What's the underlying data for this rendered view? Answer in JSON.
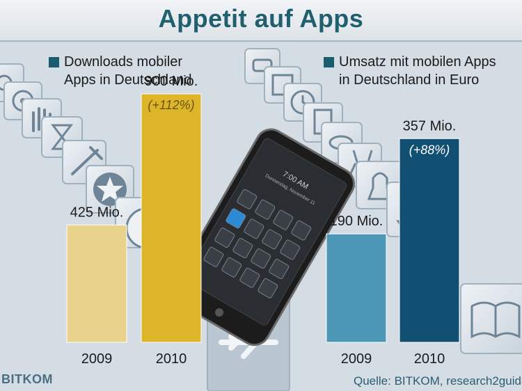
{
  "title": "Appetit auf Apps",
  "left_legend": {
    "line1": "Downloads mobiler",
    "line2": "Apps in Deutschland"
  },
  "right_legend": {
    "line1": "Umsatz mit mobilen Apps",
    "line2": "in Deutschland in Euro"
  },
  "source": "Quelle: BITKOM, research2guidance",
  "logo": "BITKOM",
  "phone": {
    "time": "7:00 AM",
    "date": "Donnerstag, November 11"
  },
  "icons": [
    "settings-icon",
    "eye-icon",
    "hand-icon",
    "hourglass-icon",
    "tool-icon",
    "star-icon",
    "disc-icon",
    "airplane-icon",
    "cow-icon",
    "floppy-icon",
    "clock-icon",
    "document-icon",
    "fish-icon",
    "deer-icon",
    "bell-icon",
    "ship-icon",
    "book-icon"
  ],
  "chart_data": [
    {
      "type": "bar",
      "categories": [
        "2009",
        "2010"
      ],
      "values": [
        425,
        900
      ],
      "value_labels": [
        "425 Mio.",
        "900 Mio."
      ],
      "change_label": "(+112%)",
      "title": "Downloads mobiler Apps in Deutschland",
      "colors": [
        "#e9d28b",
        "#dcb529"
      ]
    },
    {
      "type": "bar",
      "categories": [
        "2009",
        "2010"
      ],
      "values": [
        190,
        357
      ],
      "value_labels": [
        "190 Mio.",
        "357 Mio."
      ],
      "change_label": "(+88%)",
      "title": "Umsatz mit mobilen Apps in Deutschland in Euro",
      "colors": [
        "#4c96b6",
        "#114f73"
      ]
    }
  ],
  "colors": {
    "background": "#d5dde4",
    "title": "#1f5f6e",
    "legend_swatch": "#1a5d6e"
  }
}
